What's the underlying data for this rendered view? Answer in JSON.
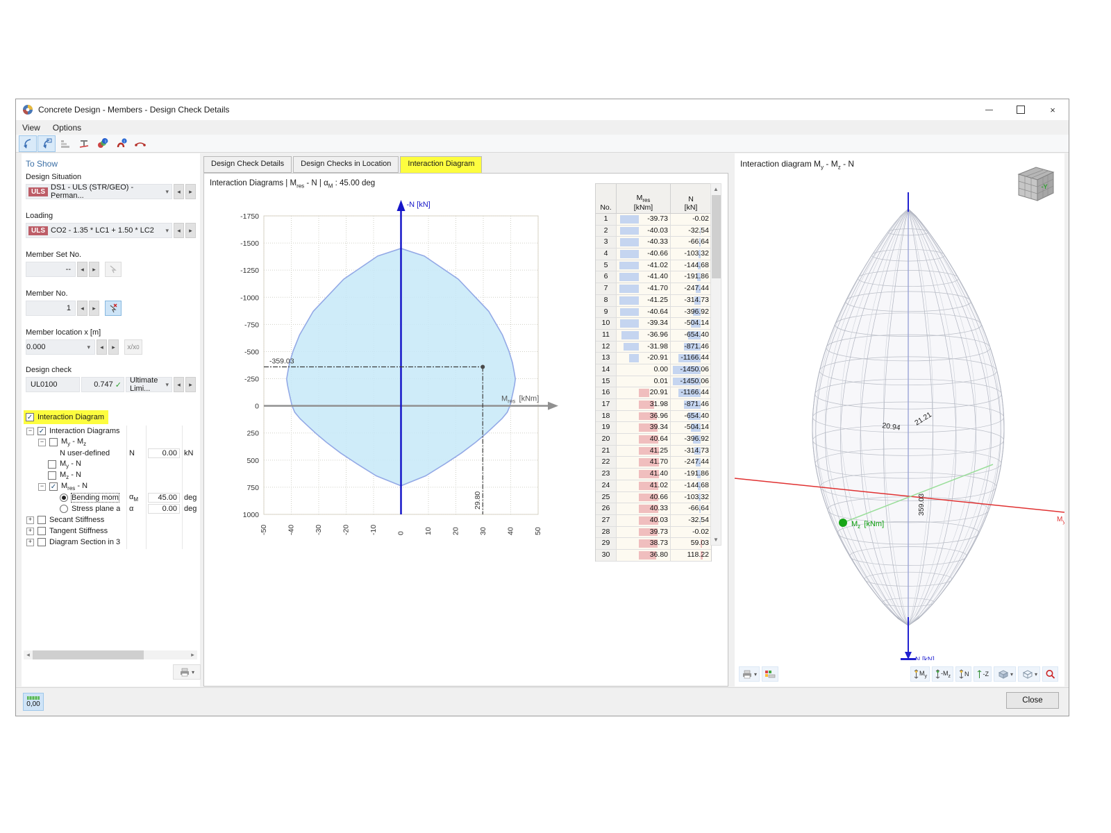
{
  "window": {
    "title": "Concrete Design - Members - Design Check Details"
  },
  "menu": [
    "View",
    "Options"
  ],
  "toolbar_icons": [
    "select-pointer-icon",
    "select-window-icon",
    "result-rows-icon",
    "section-icon",
    "design-ratio-icon",
    "reinforcement-info-icon",
    "member-diagram-icon"
  ],
  "sidebar": {
    "header": "To Show",
    "design_situation": {
      "label": "Design Situation",
      "badge": "ULS",
      "value": "DS1 - ULS (STR/GEO) - Perman..."
    },
    "loading": {
      "label": "Loading",
      "badge": "ULS",
      "value": "CO2 - 1.35 * LC1 + 1.50 * LC2"
    },
    "member_set_no": {
      "label": "Member Set No.",
      "value": "--"
    },
    "member_no": {
      "label": "Member No.",
      "value": "1"
    },
    "member_location": {
      "label": "Member location x [m]",
      "value": "0.000",
      "button": "x/x_0"
    },
    "design_check": {
      "label": "Design check",
      "code": "UL0100",
      "ratio": "0.747",
      "type": "Ultimate Limi..."
    },
    "interaction_toggle": {
      "label": "Interaction Diagram",
      "checked": true
    },
    "tree": [
      {
        "level": 0,
        "exp": "minus",
        "ctl": "check",
        "on": true,
        "label": "Interaction Diagrams"
      },
      {
        "level": 1,
        "exp": "minus",
        "ctl": "check",
        "on": false,
        "label": "M_y - M_z"
      },
      {
        "level": 2,
        "exp": "",
        "ctl": "",
        "on": false,
        "label": "N user-defined",
        "sym": "N",
        "val": "0.00",
        "unit": "kN"
      },
      {
        "level": 1,
        "exp": "",
        "ctl": "check",
        "on": false,
        "label": "M_y - N"
      },
      {
        "level": 1,
        "exp": "",
        "ctl": "check",
        "on": false,
        "label": "M_z - N"
      },
      {
        "level": 1,
        "exp": "minus",
        "ctl": "check",
        "on": true,
        "label": "M_res - N"
      },
      {
        "level": 2,
        "exp": "",
        "ctl": "radio",
        "on": true,
        "focus": true,
        "label": "Bending mom",
        "sym": "α_M",
        "val": "45.00",
        "unit": "deg"
      },
      {
        "level": 2,
        "exp": "",
        "ctl": "radio",
        "on": false,
        "label": "Stress plane a",
        "sym": "α",
        "val": "0.00",
        "unit": "deg"
      },
      {
        "level": 0,
        "exp": "plus",
        "ctl": "check",
        "on": false,
        "label": "Secant Stiffness"
      },
      {
        "level": 0,
        "exp": "plus",
        "ctl": "check",
        "on": false,
        "label": "Tangent Stiffness"
      },
      {
        "level": 0,
        "exp": "plus",
        "ctl": "check",
        "on": false,
        "label": "Diagram Section in 3"
      }
    ]
  },
  "tabs": [
    {
      "label": "Design Check Details",
      "active": false
    },
    {
      "label": "Design Checks in Location",
      "active": false
    },
    {
      "label": "Interaction Diagram",
      "active": true
    }
  ],
  "diagram_panel": {
    "header": "Interaction Diagrams | M_res - N | α_M : 45.00 deg"
  },
  "chart_data": {
    "type": "area",
    "title": "Interaction Diagrams | Mres - N | aM : 45.00 deg",
    "xlabel": "M_res [kNm]",
    "ylabel": "-N [kN]",
    "xlim": [
      -50,
      50
    ],
    "ylim": [
      -1750,
      1000
    ],
    "x_ticks": [
      -50,
      -40,
      -30,
      -20,
      -10,
      0,
      10,
      20,
      30,
      40,
      50
    ],
    "y_ticks": [
      -1750,
      -1500,
      -1250,
      -1000,
      -750,
      -500,
      -250,
      0,
      250,
      500,
      750,
      1000
    ],
    "grid": true,
    "fill": "#c7e9f8",
    "stroke": "#93a9e6",
    "design_point": {
      "mres": 29.8,
      "n": -359.03,
      "label_x": "29.80",
      "label_y": "-359.03"
    },
    "boundary": [
      [
        -39.73,
        -0.02
      ],
      [
        -40.03,
        -32.54
      ],
      [
        -40.33,
        -66.64
      ],
      [
        -40.66,
        -103.32
      ],
      [
        -41.02,
        -144.68
      ],
      [
        -41.4,
        -191.86
      ],
      [
        -41.7,
        -247.44
      ],
      [
        -41.25,
        -314.73
      ],
      [
        -40.64,
        -396.92
      ],
      [
        -39.34,
        -504.14
      ],
      [
        -36.96,
        -654.4
      ],
      [
        -31.98,
        -871.46
      ],
      [
        -20.91,
        -1166.44
      ],
      [
        -8.5,
        -1380.0
      ],
      [
        0.0,
        -1450.06
      ],
      [
        8.5,
        -1380.0
      ],
      [
        20.91,
        -1166.44
      ],
      [
        31.98,
        -871.46
      ],
      [
        36.96,
        -654.4
      ],
      [
        39.34,
        -504.14
      ],
      [
        40.64,
        -396.92
      ],
      [
        41.25,
        -314.73
      ],
      [
        41.7,
        -247.44
      ],
      [
        41.4,
        -191.86
      ],
      [
        41.02,
        -144.68
      ],
      [
        40.66,
        -103.32
      ],
      [
        40.33,
        -66.64
      ],
      [
        40.03,
        -32.54
      ],
      [
        39.73,
        -0.02
      ],
      [
        38.73,
        59.03
      ],
      [
        36.8,
        118.22
      ],
      [
        34.2,
        180.0
      ],
      [
        31.0,
        255.0
      ],
      [
        27.0,
        340.0
      ],
      [
        22.0,
        435.0
      ],
      [
        16.0,
        535.0
      ],
      [
        9.0,
        645.0
      ],
      [
        0.0,
        737.0
      ],
      [
        -9.0,
        645.0
      ],
      [
        -16.0,
        535.0
      ],
      [
        -22.0,
        435.0
      ],
      [
        -27.0,
        340.0
      ],
      [
        -31.0,
        255.0
      ],
      [
        -34.2,
        180.0
      ],
      [
        -36.8,
        118.22
      ],
      [
        -38.73,
        59.03
      ]
    ]
  },
  "table": {
    "col_no": "No.",
    "col_mres": "M_res",
    "col_mres_unit": "[kNm]",
    "col_n": "N",
    "col_n_unit": "[kN]",
    "max_mres": 41.7,
    "max_n": 1450.06,
    "rows": [
      [
        1,
        "-39.73",
        "-0.02"
      ],
      [
        2,
        "-40.03",
        "-32.54"
      ],
      [
        3,
        "-40.33",
        "-66.64"
      ],
      [
        4,
        "-40.66",
        "-103.32"
      ],
      [
        5,
        "-41.02",
        "-144.68"
      ],
      [
        6,
        "-41.40",
        "-191.86"
      ],
      [
        7,
        "-41.70",
        "-247.44"
      ],
      [
        8,
        "-41.25",
        "-314.73"
      ],
      [
        9,
        "-40.64",
        "-396.92"
      ],
      [
        10,
        "-39.34",
        "-504.14"
      ],
      [
        11,
        "-36.96",
        "-654.40"
      ],
      [
        12,
        "-31.98",
        "-871.46"
      ],
      [
        13,
        "-20.91",
        "-1166.44"
      ],
      [
        14,
        "0.00",
        "-1450.06"
      ],
      [
        15,
        "0.01",
        "-1450.06"
      ],
      [
        16,
        "20.91",
        "-1166.44"
      ],
      [
        17,
        "31.98",
        "-871.46"
      ],
      [
        18,
        "36.96",
        "-654.40"
      ],
      [
        19,
        "39.34",
        "-504.14"
      ],
      [
        20,
        "40.64",
        "-396.92"
      ],
      [
        21,
        "41.25",
        "-314.73"
      ],
      [
        22,
        "41.70",
        "-247.44"
      ],
      [
        23,
        "41.40",
        "-191.86"
      ],
      [
        24,
        "41.02",
        "-144.68"
      ],
      [
        25,
        "40.66",
        "-103.32"
      ],
      [
        26,
        "40.33",
        "-66.64"
      ],
      [
        27,
        "40.03",
        "-32.54"
      ],
      [
        28,
        "39.73",
        "-0.02"
      ],
      [
        29,
        "38.73",
        "59.03"
      ],
      [
        30,
        "36.80",
        "118.22"
      ]
    ]
  },
  "viewer": {
    "title": "Interaction diagram M_y - M_z - N",
    "cube_label": "-Y",
    "axis_n": "N [kN]",
    "axis_my": "M_y",
    "axis_mz": "M_z [kNm]",
    "value_labels": [
      "20.94",
      "21.21",
      "359.03"
    ],
    "toolbar_labels": {
      "my": "M_y",
      "mz": "-M_z",
      "n": "N",
      "z": "-Z"
    }
  },
  "statusbar": {
    "decimals": "0,00",
    "close": "Close"
  }
}
